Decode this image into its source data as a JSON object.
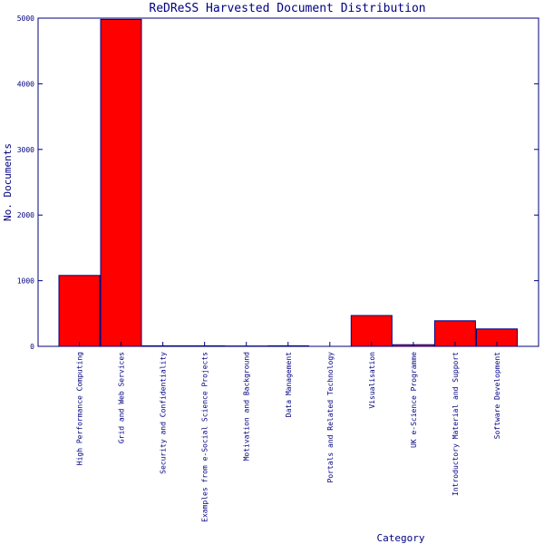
{
  "chart_data": {
    "type": "bar",
    "title": "ReDReSS Harvested Document Distribution",
    "xlabel": "Category",
    "ylabel": "No. Documents",
    "ylim": [
      0,
      5000
    ],
    "yticks": [
      0,
      1000,
      2000,
      3000,
      4000,
      5000
    ],
    "categories": [
      "High Performance Computing",
      "Grid and Web Services",
      "Security and Confidentiality",
      "Examples from e-Social Science Projects",
      "Motivation and Background",
      "Data Management",
      "Portals and Related Technology",
      "Visualisation",
      "UK e-Science Programme",
      "Introductory Material and Support",
      "Software Development"
    ],
    "values": [
      1080,
      4980,
      8,
      8,
      5,
      8,
      0,
      470,
      25,
      390,
      265
    ],
    "bar_color": "#ff0000",
    "axis_color": "#000080",
    "grid": false,
    "legend": "none"
  }
}
